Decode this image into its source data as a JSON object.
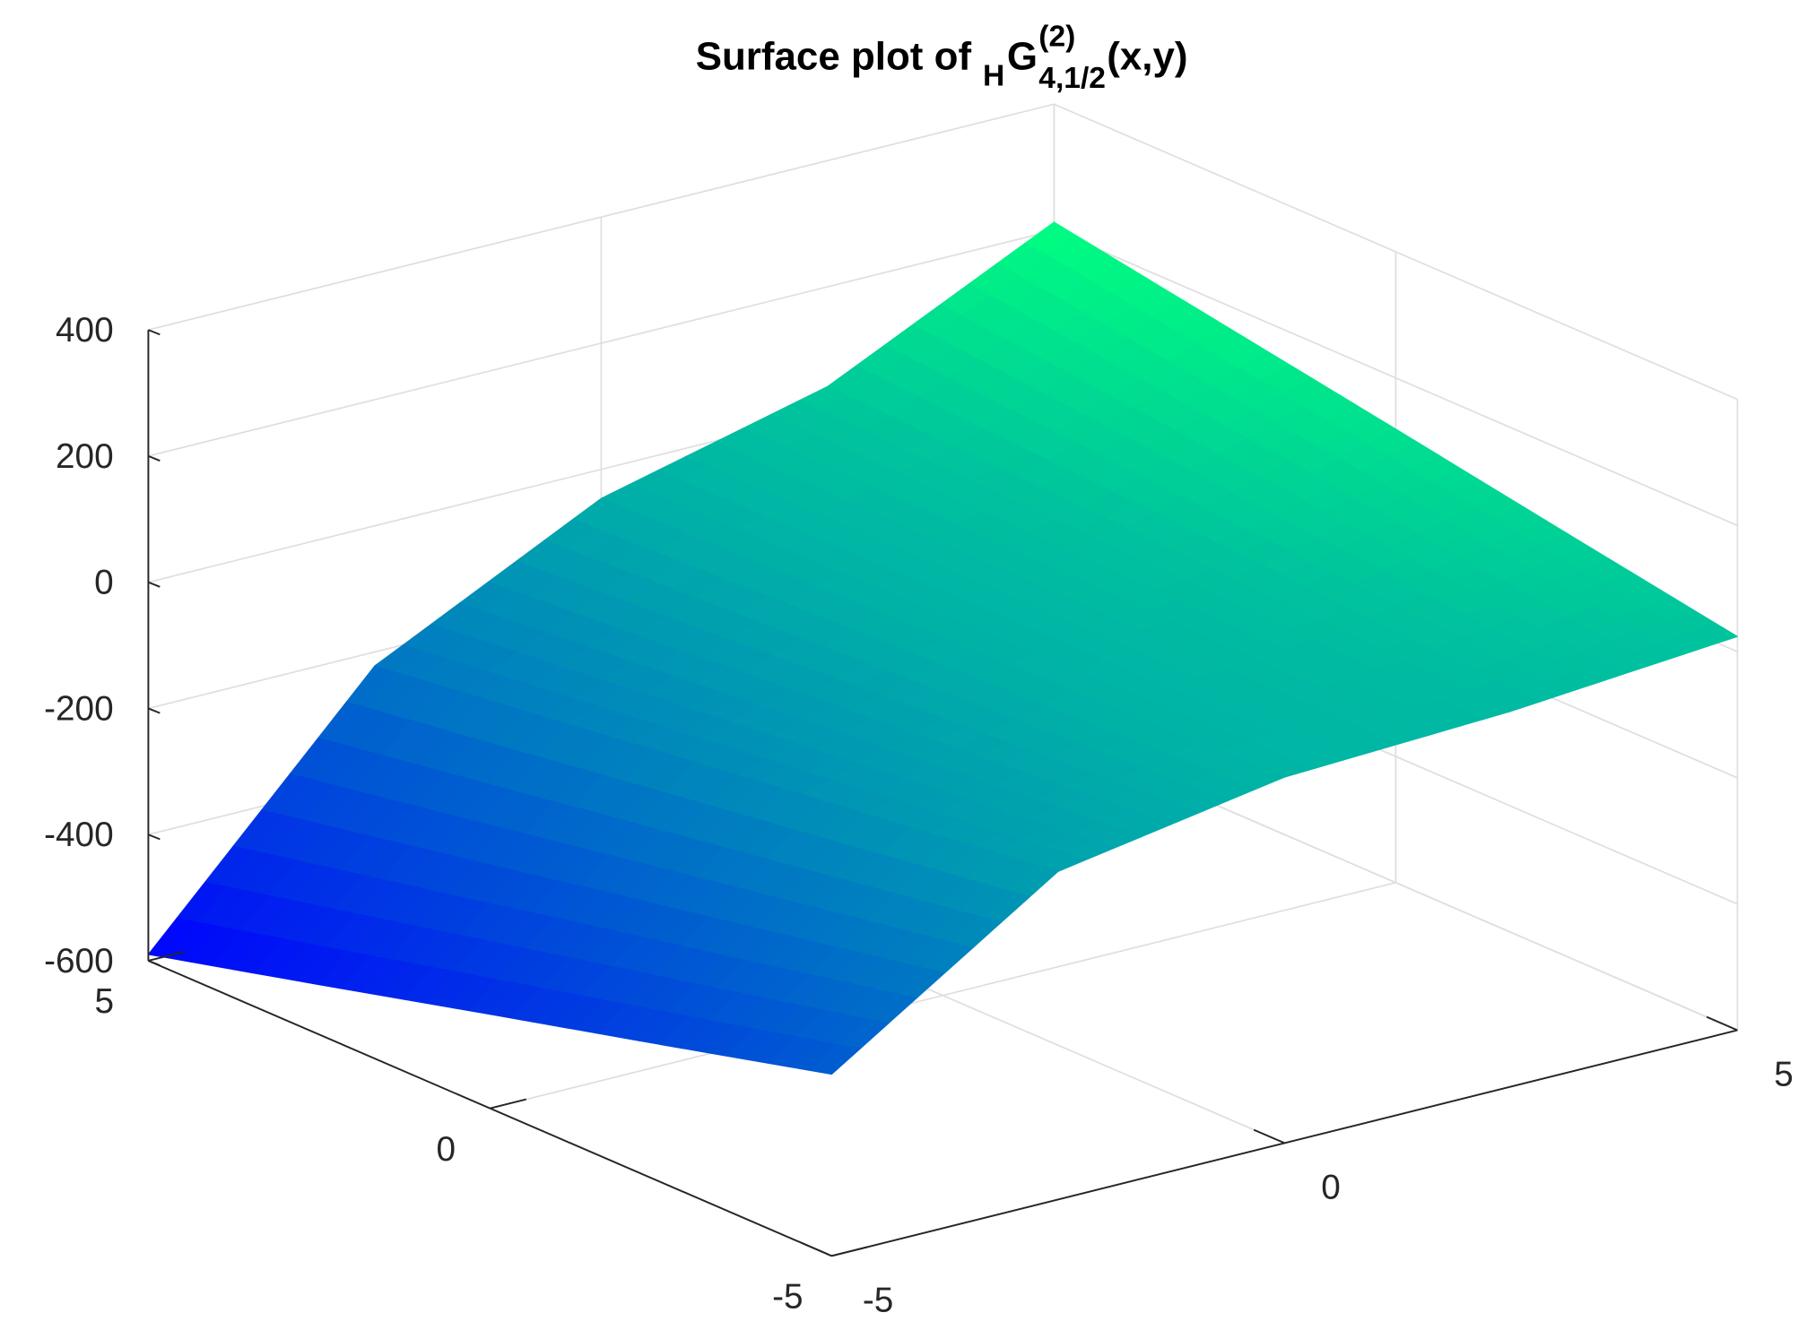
{
  "chart_data": {
    "type": "surface",
    "title_parts": {
      "prefix": "Surface plot of",
      "pre_subscript": "H",
      "base": "G",
      "superscript": "(2)",
      "subscript": "4,1/2",
      "suffix": "(x,y)"
    },
    "x": [
      -5,
      -2.5,
      0,
      2.5,
      5
    ],
    "y": [
      -5,
      -2.5,
      0,
      2.5,
      5
    ],
    "z": [
      [
        -312,
        -80,
        -20,
        -5,
        24
      ],
      [
        -382,
        -116,
        -27,
        7,
        71
      ],
      [
        -451,
        -151,
        -33,
        19,
        119
      ],
      [
        -521,
        -187,
        -40,
        30,
        166
      ],
      [
        -590,
        -222,
        -46,
        42,
        213
      ]
    ],
    "xlim": [
      -5,
      5
    ],
    "ylim": [
      -5,
      5
    ],
    "zlim": [
      -600,
      400
    ],
    "xticks": [
      -5,
      0,
      5
    ],
    "yticks": [
      -5,
      0,
      5
    ],
    "zticks": [
      -600,
      -400,
      -200,
      0,
      200,
      400
    ],
    "colormap": "winter",
    "grid": true
  }
}
